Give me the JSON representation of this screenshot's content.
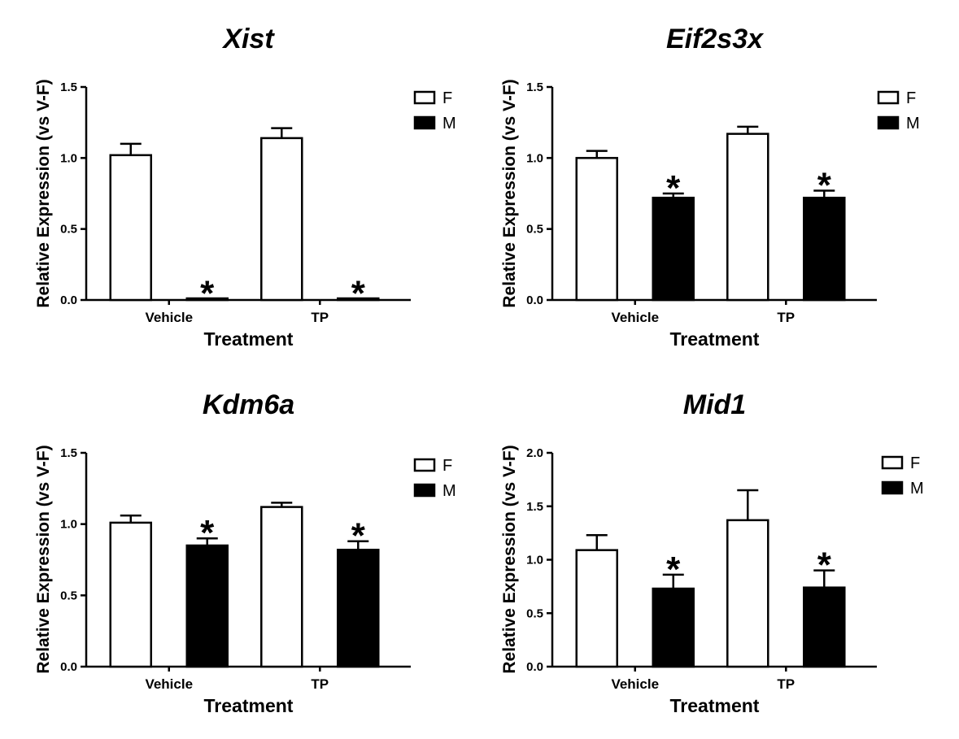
{
  "chart_data": [
    {
      "type": "bar",
      "title": "Xist",
      "xlabel": "Treatment",
      "ylabel": "Relative  Expression  (vs V-F)",
      "categories": [
        "Vehicle",
        "TP"
      ],
      "ylim": [
        0,
        1.5
      ],
      "yticks": [
        "0.0",
        "0.5",
        "1.0",
        "1.5"
      ],
      "legend_position": "top-right",
      "series": [
        {
          "name": "F",
          "color": "#ffffff",
          "values": [
            1.02,
            1.14
          ],
          "errors": [
            0.08,
            0.07
          ],
          "significance": [
            "",
            ""
          ]
        },
        {
          "name": "M",
          "color": "#000000",
          "values": [
            0.005,
            0.005
          ],
          "errors": [
            0.005,
            0.005
          ],
          "significance": [
            "*",
            "*"
          ]
        }
      ]
    },
    {
      "type": "bar",
      "title": "Eif2s3x",
      "xlabel": "Treatment",
      "ylabel": "Relative  Expression  (vs V-F)",
      "categories": [
        "Vehicle",
        "TP"
      ],
      "ylim": [
        0,
        1.5
      ],
      "yticks": [
        "0.0",
        "0.5",
        "1.0",
        "1.5"
      ],
      "legend_position": "top-right",
      "series": [
        {
          "name": "F",
          "color": "#ffffff",
          "values": [
            1.0,
            1.17
          ],
          "errors": [
            0.05,
            0.05
          ],
          "significance": [
            "",
            ""
          ]
        },
        {
          "name": "M",
          "color": "#000000",
          "values": [
            0.72,
            0.72
          ],
          "errors": [
            0.03,
            0.05
          ],
          "significance": [
            "*",
            "*"
          ]
        }
      ]
    },
    {
      "type": "bar",
      "title": "Kdm6a",
      "xlabel": "Treatment",
      "ylabel": "Relative  Expression  (vs V-F)",
      "categories": [
        "Vehicle",
        "TP"
      ],
      "ylim": [
        0,
        1.5
      ],
      "yticks": [
        "0.0",
        "0.5",
        "1.0",
        "1.5"
      ],
      "legend_position": "top-right",
      "series": [
        {
          "name": "F",
          "color": "#ffffff",
          "values": [
            1.01,
            1.12
          ],
          "errors": [
            0.05,
            0.03
          ],
          "significance": [
            "",
            ""
          ]
        },
        {
          "name": "M",
          "color": "#000000",
          "values": [
            0.85,
            0.82
          ],
          "errors": [
            0.05,
            0.06
          ],
          "significance": [
            "*",
            "*"
          ]
        }
      ]
    },
    {
      "type": "bar",
      "title": "Mid1",
      "xlabel": "Treatment",
      "ylabel": "Relative  Expression  (vs V-F)",
      "categories": [
        "Vehicle",
        "TP"
      ],
      "ylim": [
        0,
        2.0
      ],
      "yticks": [
        "0.0",
        "0.5",
        "1.0",
        "1.5",
        "2.0"
      ],
      "legend_position": "top-right",
      "series": [
        {
          "name": "F",
          "color": "#ffffff",
          "values": [
            1.09,
            1.37
          ],
          "errors": [
            0.14,
            0.28
          ],
          "significance": [
            "",
            ""
          ]
        },
        {
          "name": "M",
          "color": "#000000",
          "values": [
            0.73,
            0.74
          ],
          "errors": [
            0.13,
            0.16
          ],
          "significance": [
            "*",
            "*"
          ]
        }
      ]
    }
  ]
}
